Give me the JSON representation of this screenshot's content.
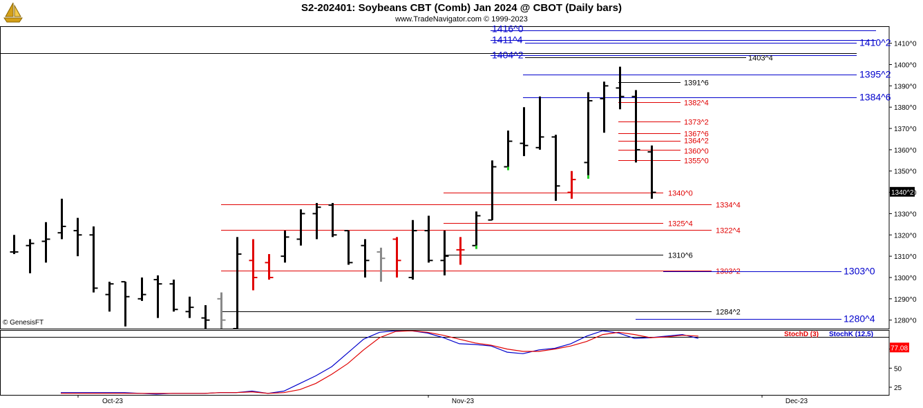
{
  "header": {
    "title": "S2-202401:  Soybeans CBT (Comb) Jan 2024 @ CBOT  (Daily bars)",
    "subtitle": "www.TradeNavigator.com © 1999-2023"
  },
  "footer": {
    "credit": "© GenesisFT"
  },
  "colors": {
    "bar_up": "#000000",
    "bar_red": "#e00000",
    "bar_gray": "#888888",
    "line_red": "#e00000",
    "line_blue": "#0000cc",
    "line_black": "#000000",
    "stoch_k": "#0000cc",
    "stoch_d": "#e00000",
    "price_tag": "#000000",
    "stoch_tag": "#ff0000"
  },
  "chart_data": [
    {
      "type": "ohlc",
      "series_name": "Soybeans CBT (Comb) Jan 2024",
      "ylim": [
        1276,
        1418
      ],
      "y_ticks": [
        "1280^0",
        "1290^0",
        "1300^0",
        "1310^0",
        "1320^0",
        "1330^0",
        "1340^0",
        "1350^0",
        "1360^0",
        "1370^0",
        "1380^0",
        "1390^0",
        "1400^0",
        "1410^0"
      ],
      "y_tick_values": [
        1280,
        1290,
        1300,
        1310,
        1320,
        1330,
        1340,
        1350,
        1360,
        1370,
        1380,
        1390,
        1400,
        1410
      ],
      "x_labels": [
        "Oct-23",
        "Nov-23",
        "Dec-23"
      ],
      "last_price_label": "1340^2",
      "last_price": 1340.25,
      "bars": [
        {
          "o": 1312,
          "h": 1320,
          "l": 1311,
          "c": 1312,
          "color": "black"
        },
        {
          "o": 1315,
          "h": 1318,
          "l": 1302,
          "c": 1316,
          "color": "black"
        },
        {
          "o": 1317,
          "h": 1326,
          "l": 1307,
          "c": 1318,
          "color": "black"
        },
        {
          "o": 1321,
          "h": 1337,
          "l": 1318,
          "c": 1324,
          "color": "black"
        },
        {
          "o": 1322,
          "h": 1328,
          "l": 1310,
          "c": 1320,
          "color": "black"
        },
        {
          "o": 1320,
          "h": 1324,
          "l": 1293,
          "c": 1295,
          "color": "black"
        },
        {
          "o": 1292,
          "h": 1298,
          "l": 1284,
          "c": 1297,
          "color": "black"
        },
        {
          "o": 1298,
          "h": 1298,
          "l": 1277,
          "c": 1291,
          "color": "black"
        },
        {
          "o": 1290,
          "h": 1300,
          "l": 1289,
          "c": 1292,
          "color": "black"
        },
        {
          "o": 1299,
          "h": 1301,
          "l": 1281,
          "c": 1297,
          "color": "black"
        },
        {
          "o": 1297,
          "h": 1299,
          "l": 1284,
          "c": 1285,
          "color": "black"
        },
        {
          "o": 1284,
          "h": 1291,
          "l": 1281,
          "c": 1286,
          "color": "black"
        },
        {
          "o": 1281,
          "h": 1287,
          "l": 1276,
          "c": 1280,
          "color": "black"
        },
        {
          "o": 1290,
          "h": 1293,
          "l": 1276,
          "c": 1280,
          "color": "gray"
        },
        {
          "o": 1276,
          "h": 1319,
          "l": 1276,
          "c": 1311,
          "color": "black"
        },
        {
          "o": 1308,
          "h": 1318,
          "l": 1294,
          "c": 1300,
          "color": "red"
        },
        {
          "o": 1307,
          "h": 1311,
          "l": 1299,
          "c": 1300,
          "color": "red"
        },
        {
          "o": 1310,
          "h": 1322,
          "l": 1307,
          "c": 1319,
          "color": "black"
        },
        {
          "o": 1318,
          "h": 1332,
          "l": 1315,
          "c": 1330,
          "color": "black"
        },
        {
          "o": 1330,
          "h": 1335,
          "l": 1318,
          "c": 1333,
          "color": "black"
        },
        {
          "o": 1334,
          "h": 1335,
          "l": 1319,
          "c": 1320,
          "color": "black"
        },
        {
          "o": 1322,
          "h": 1322,
          "l": 1306,
          "c": 1307,
          "color": "black"
        },
        {
          "o": 1315,
          "h": 1318,
          "l": 1300,
          "c": 1308,
          "color": "black"
        },
        {
          "o": 1312,
          "h": 1314,
          "l": 1298,
          "c": 1309,
          "color": "gray"
        },
        {
          "o": 1318,
          "h": 1319,
          "l": 1300,
          "c": 1308,
          "color": "red"
        },
        {
          "o": 1300,
          "h": 1327,
          "l": 1299,
          "c": 1322,
          "color": "black"
        },
        {
          "o": 1322,
          "h": 1329,
          "l": 1307,
          "c": 1308,
          "color": "black"
        },
        {
          "o": 1308,
          "h": 1322,
          "l": 1301,
          "c": 1310,
          "color": "black"
        },
        {
          "o": 1313,
          "h": 1319,
          "l": 1306,
          "c": 1313,
          "color": "red"
        },
        {
          "o": 1315,
          "h": 1331,
          "l": 1315,
          "c": 1329,
          "color": "black"
        },
        {
          "o": 1327,
          "h": 1355,
          "l": 1327,
          "c": 1352,
          "color": "black"
        },
        {
          "o": 1352,
          "h": 1369,
          "l": 1352,
          "c": 1364,
          "color": "black"
        },
        {
          "o": 1363,
          "h": 1380,
          "l": 1357,
          "c": 1362,
          "color": "black"
        },
        {
          "o": 1361,
          "h": 1385,
          "l": 1360,
          "c": 1366,
          "color": "black"
        },
        {
          "o": 1366,
          "h": 1367,
          "l": 1336,
          "c": 1343,
          "color": "black"
        },
        {
          "o": 1340,
          "h": 1350,
          "l": 1337,
          "c": 1346,
          "color": "red"
        },
        {
          "o": 1354,
          "h": 1387,
          "l": 1348,
          "c": 1383,
          "color": "black"
        },
        {
          "o": 1384,
          "h": 1392,
          "l": 1368,
          "c": 1390,
          "color": "black"
        },
        {
          "o": 1389,
          "h": 1399,
          "l": 1379,
          "c": 1385,
          "color": "black"
        },
        {
          "o": 1385,
          "h": 1388,
          "l": 1354,
          "c": 1360,
          "color": "black"
        },
        {
          "o": 1359,
          "h": 1362,
          "l": 1337,
          "c": 1340,
          "color": "black"
        }
      ],
      "levels": [
        {
          "price": 1416,
          "label": "1416^0",
          "color": "blue",
          "side": "left"
        },
        {
          "price": 1411.5,
          "label": "1411^4",
          "color": "blue",
          "side": "left"
        },
        {
          "price": 1410.25,
          "label": "1410^2",
          "color": "blue",
          "side": "right"
        },
        {
          "price": 1404.25,
          "label": "1404^2",
          "color": "blue",
          "side": "left"
        },
        {
          "price": 1403.5,
          "label": "1403^4",
          "color": "black",
          "side": "right"
        },
        {
          "price": 1395.25,
          "label": "1395^2",
          "color": "blue",
          "side": "right"
        },
        {
          "price": 1391.75,
          "label": "1391^6",
          "color": "black",
          "side": "right"
        },
        {
          "price": 1384.75,
          "label": "1384^6",
          "color": "blue",
          "side": "right"
        },
        {
          "price": 1382.5,
          "label": "1382^4",
          "color": "red",
          "side": "right"
        },
        {
          "price": 1373.25,
          "label": "1373^2",
          "color": "red",
          "side": "right"
        },
        {
          "price": 1367.75,
          "label": "1367^6",
          "color": "red",
          "side": "right"
        },
        {
          "price": 1364.25,
          "label": "1364^2",
          "color": "red",
          "side": "right"
        },
        {
          "price": 1360,
          "label": "1360^0",
          "color": "red",
          "side": "right"
        },
        {
          "price": 1355,
          "label": "1355^0",
          "color": "red",
          "side": "right"
        },
        {
          "price": 1340,
          "label": "1340^0",
          "color": "red",
          "side": "right"
        },
        {
          "price": 1334.5,
          "label": "1334^4",
          "color": "red",
          "side": "right"
        },
        {
          "price": 1325.5,
          "label": "1325^4",
          "color": "red",
          "side": "right"
        },
        {
          "price": 1322.5,
          "label": "1322^4",
          "color": "red",
          "side": "right"
        },
        {
          "price": 1310.75,
          "label": "1310^6",
          "color": "black",
          "side": "right"
        },
        {
          "price": 1303.25,
          "label": "1303^2",
          "color": "red",
          "side": "right"
        },
        {
          "price": 1303,
          "label": "1303^0",
          "color": "blue",
          "side": "right"
        },
        {
          "price": 1284.25,
          "label": "1284^2",
          "color": "black",
          "side": "right"
        },
        {
          "price": 1280.5,
          "label": "1280^4",
          "color": "blue",
          "side": "right"
        }
      ]
    },
    {
      "type": "line",
      "indicator": "Stochastic",
      "legend": [
        "StochD (3)",
        "StochK (12,5)"
      ],
      "ylim": [
        15,
        100
      ],
      "y_ticks": [
        "25",
        "50",
        "75"
      ],
      "y_tick_values": [
        25,
        50,
        75
      ],
      "last_value_label": "77.08",
      "last_value": 77.08,
      "series": [
        {
          "name": "StochK (12,5)",
          "color": "blue",
          "values": [
            18,
            18,
            18,
            18,
            18,
            17,
            16,
            17,
            17,
            17,
            18,
            18,
            20,
            17,
            20,
            30,
            40,
            52,
            70,
            88,
            97,
            99,
            99,
            96,
            90,
            82,
            81,
            79,
            71,
            69,
            74,
            76,
            82,
            92,
            99,
            96,
            89,
            90,
            92,
            94,
            89
          ]
        },
        {
          "name": "StochD (3)",
          "color": "red",
          "values": [
            17,
            17,
            17,
            17,
            17,
            17,
            17,
            17,
            17,
            17,
            18,
            18,
            19,
            17,
            18,
            22,
            30,
            42,
            56,
            74,
            90,
            98,
            99,
            97,
            93,
            88,
            83,
            80,
            75,
            72,
            72,
            75,
            79,
            85,
            94,
            97,
            94,
            90,
            91,
            93,
            92
          ]
        }
      ]
    }
  ]
}
